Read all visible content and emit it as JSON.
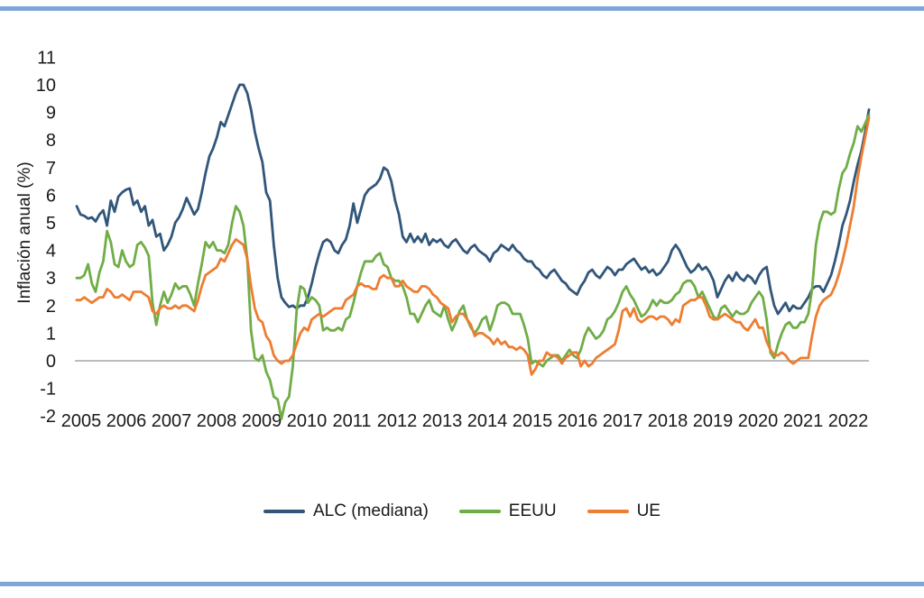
{
  "figure": {
    "top_rule_color": "#7ea6d9",
    "bottom_rule_color": "#7ea6d9",
    "background": "#ffffff",
    "text_color": "#1a1a1a"
  },
  "chart_data": {
    "type": "line",
    "title": "",
    "xlabel": "",
    "ylabel": "Inflación anual (%)",
    "frequency": "monthly",
    "x_start": "2005-01",
    "x_end": "2022-06",
    "ylim": [
      -2,
      11
    ],
    "grid": false,
    "zero_line": true,
    "zero_line_color": "#a6a6a6",
    "legend_position": "bottom",
    "x_tick_labels": [
      "2005",
      "2006",
      "2007",
      "2008",
      "2009",
      "2010",
      "2011",
      "2012",
      "2013",
      "2014",
      "2015",
      "2016",
      "2017",
      "2018",
      "2019",
      "2020",
      "2021",
      "2022"
    ],
    "y_ticks": [
      11,
      10,
      9,
      8,
      7,
      6,
      5,
      4,
      3,
      2,
      1,
      0,
      -1,
      -2
    ],
    "series": [
      {
        "name": "ALC (mediana)",
        "color": "#31567a",
        "values": [
          5.6,
          5.3,
          5.25,
          5.15,
          5.2,
          5.05,
          5.3,
          5.45,
          4.9,
          5.8,
          5.4,
          5.95,
          6.1,
          6.2,
          6.25,
          5.65,
          5.8,
          5.4,
          5.6,
          4.9,
          5.1,
          4.5,
          4.6,
          4.0,
          4.2,
          4.5,
          5.0,
          5.2,
          5.5,
          5.9,
          5.6,
          5.3,
          5.5,
          6.1,
          6.8,
          7.4,
          7.7,
          8.1,
          8.65,
          8.5,
          8.9,
          9.3,
          9.7,
          10.0,
          10.0,
          9.7,
          9.1,
          8.3,
          7.7,
          7.2,
          6.1,
          5.8,
          4.2,
          3.0,
          2.3,
          2.1,
          1.95,
          2.0,
          1.9,
          2.0,
          2.0,
          2.3,
          2.8,
          3.4,
          3.9,
          4.3,
          4.4,
          4.3,
          4.0,
          3.9,
          4.2,
          4.4,
          4.9,
          5.7,
          5.0,
          5.5,
          6.0,
          6.2,
          6.3,
          6.4,
          6.6,
          7.0,
          6.9,
          6.5,
          5.8,
          5.3,
          4.5,
          4.3,
          4.6,
          4.3,
          4.5,
          4.3,
          4.6,
          4.2,
          4.4,
          4.3,
          4.4,
          4.2,
          4.1,
          4.3,
          4.4,
          4.2,
          4.0,
          3.9,
          4.1,
          4.2,
          4.0,
          3.9,
          3.8,
          3.6,
          3.9,
          4.0,
          4.2,
          4.1,
          4.0,
          4.2,
          4.0,
          3.9,
          3.7,
          3.6,
          3.6,
          3.4,
          3.3,
          3.1,
          3.0,
          3.2,
          3.3,
          3.1,
          2.9,
          2.8,
          2.6,
          2.5,
          2.4,
          2.7,
          2.9,
          3.2,
          3.3,
          3.1,
          3.0,
          3.2,
          3.4,
          3.3,
          3.1,
          3.3,
          3.3,
          3.5,
          3.6,
          3.7,
          3.5,
          3.3,
          3.4,
          3.2,
          3.3,
          3.1,
          3.2,
          3.4,
          3.6,
          4.0,
          4.2,
          4.0,
          3.7,
          3.4,
          3.2,
          3.3,
          3.5,
          3.3,
          3.4,
          3.2,
          2.9,
          2.3,
          2.6,
          2.9,
          3.1,
          2.9,
          3.2,
          3.0,
          2.9,
          3.1,
          3.0,
          2.8,
          3.1,
          3.3,
          3.4,
          2.6,
          2.0,
          1.7,
          1.9,
          2.1,
          1.8,
          2.0,
          1.9,
          1.9,
          2.1,
          2.3,
          2.6,
          2.7,
          2.7,
          2.5,
          2.8,
          3.1,
          3.6,
          4.2,
          4.9,
          5.3,
          5.8,
          6.5,
          7.1,
          7.6,
          8.3,
          9.1
        ]
      },
      {
        "name": "EEUU",
        "color": "#70ad47",
        "values": [
          3.0,
          3.0,
          3.1,
          3.5,
          2.8,
          2.5,
          3.2,
          3.6,
          4.7,
          4.3,
          3.5,
          3.4,
          4.0,
          3.6,
          3.4,
          3.5,
          4.2,
          4.3,
          4.1,
          3.8,
          2.1,
          1.3,
          2.0,
          2.5,
          2.1,
          2.4,
          2.8,
          2.6,
          2.7,
          2.7,
          2.4,
          2.0,
          2.8,
          3.5,
          4.3,
          4.1,
          4.3,
          4.0,
          4.0,
          3.9,
          4.2,
          5.0,
          5.6,
          5.4,
          4.9,
          3.7,
          1.1,
          0.1,
          0.0,
          0.2,
          -0.4,
          -0.7,
          -1.3,
          -1.4,
          -2.1,
          -1.5,
          -1.3,
          -0.2,
          1.8,
          2.7,
          2.6,
          2.1,
          2.3,
          2.2,
          2.0,
          1.1,
          1.2,
          1.1,
          1.1,
          1.2,
          1.1,
          1.5,
          1.6,
          2.1,
          2.7,
          3.2,
          3.6,
          3.6,
          3.6,
          3.8,
          3.9,
          3.5,
          3.4,
          3.0,
          2.9,
          2.9,
          2.7,
          2.3,
          1.7,
          1.7,
          1.4,
          1.7,
          2.0,
          2.2,
          1.8,
          1.7,
          1.6,
          2.0,
          1.5,
          1.1,
          1.4,
          1.8,
          2.0,
          1.5,
          1.2,
          1.0,
          1.2,
          1.5,
          1.6,
          1.1,
          1.5,
          2.0,
          2.1,
          2.1,
          2.0,
          1.7,
          1.7,
          1.7,
          1.3,
          0.8,
          -0.1,
          0.0,
          -0.1,
          -0.2,
          0.0,
          0.1,
          0.2,
          0.2,
          0.0,
          0.2,
          0.4,
          0.2,
          0.1,
          0.4,
          0.9,
          1.2,
          1.0,
          0.8,
          0.9,
          1.1,
          1.5,
          1.6,
          1.8,
          2.1,
          2.5,
          2.7,
          2.4,
          2.2,
          1.9,
          1.6,
          1.7,
          1.9,
          2.2,
          2.0,
          2.2,
          2.1,
          2.1,
          2.2,
          2.4,
          2.5,
          2.8,
          2.9,
          2.9,
          2.7,
          2.3,
          2.5,
          2.2,
          1.9,
          1.6,
          1.5,
          1.9,
          2.0,
          1.8,
          1.6,
          1.8,
          1.7,
          1.7,
          1.8,
          2.1,
          2.3,
          2.5,
          2.3,
          1.5,
          0.3,
          0.1,
          0.6,
          1.0,
          1.3,
          1.4,
          1.2,
          1.2,
          1.4,
          1.4,
          1.7,
          2.6,
          4.2,
          5.0,
          5.4,
          5.4,
          5.3,
          5.4,
          6.2,
          6.8,
          7.0,
          7.5,
          7.9,
          8.5,
          8.3,
          8.6,
          8.9
        ]
      },
      {
        "name": "UE",
        "color": "#ed7d31",
        "values": [
          2.2,
          2.2,
          2.3,
          2.2,
          2.1,
          2.2,
          2.3,
          2.3,
          2.6,
          2.5,
          2.3,
          2.3,
          2.4,
          2.3,
          2.2,
          2.5,
          2.5,
          2.5,
          2.4,
          2.3,
          1.8,
          1.7,
          1.9,
          2.0,
          1.9,
          1.9,
          2.0,
          1.9,
          2.0,
          2.0,
          1.9,
          1.8,
          2.2,
          2.7,
          3.1,
          3.2,
          3.3,
          3.4,
          3.7,
          3.6,
          3.9,
          4.2,
          4.4,
          4.3,
          4.2,
          3.7,
          2.7,
          1.9,
          1.5,
          1.4,
          0.9,
          0.7,
          0.2,
          0.0,
          -0.1,
          0.0,
          0.0,
          0.2,
          0.6,
          1.0,
          1.2,
          1.1,
          1.5,
          1.6,
          1.7,
          1.6,
          1.7,
          1.8,
          1.9,
          1.9,
          1.9,
          2.2,
          2.3,
          2.4,
          2.7,
          2.8,
          2.7,
          2.7,
          2.6,
          2.6,
          3.0,
          3.1,
          3.0,
          3.0,
          2.7,
          2.7,
          2.9,
          2.7,
          2.6,
          2.5,
          2.5,
          2.7,
          2.7,
          2.6,
          2.4,
          2.3,
          2.1,
          2.0,
          1.9,
          1.4,
          1.6,
          1.7,
          1.7,
          1.5,
          1.3,
          0.9,
          1.0,
          1.0,
          0.9,
          0.8,
          0.6,
          0.8,
          0.6,
          0.7,
          0.5,
          0.5,
          0.4,
          0.5,
          0.4,
          0.2,
          -0.5,
          -0.3,
          0.0,
          0.0,
          0.3,
          0.2,
          0.2,
          0.1,
          -0.1,
          0.1,
          0.2,
          0.3,
          0.3,
          -0.2,
          0.0,
          -0.2,
          -0.1,
          0.1,
          0.2,
          0.3,
          0.4,
          0.5,
          0.6,
          1.1,
          1.8,
          1.9,
          1.6,
          1.9,
          1.5,
          1.4,
          1.5,
          1.6,
          1.6,
          1.5,
          1.6,
          1.6,
          1.5,
          1.3,
          1.5,
          1.4,
          2.0,
          2.1,
          2.2,
          2.2,
          2.3,
          2.3,
          2.0,
          1.6,
          1.5,
          1.5,
          1.6,
          1.7,
          1.6,
          1.5,
          1.4,
          1.4,
          1.2,
          1.1,
          1.3,
          1.5,
          1.2,
          1.2,
          0.7,
          0.4,
          0.2,
          0.2,
          0.3,
          0.2,
          0.0,
          -0.1,
          0.0,
          0.1,
          0.1,
          0.1,
          0.9,
          1.6,
          2.0,
          2.2,
          2.3,
          2.4,
          2.7,
          3.1,
          3.6,
          4.2,
          4.9,
          5.6,
          6.6,
          7.4,
          8.1,
          8.8
        ]
      }
    ]
  },
  "legend": {
    "items": [
      {
        "label": "ALC (mediana)",
        "color": "#31567a"
      },
      {
        "label": "EEUU",
        "color": "#70ad47"
      },
      {
        "label": "UE",
        "color": "#ed7d31"
      }
    ]
  }
}
